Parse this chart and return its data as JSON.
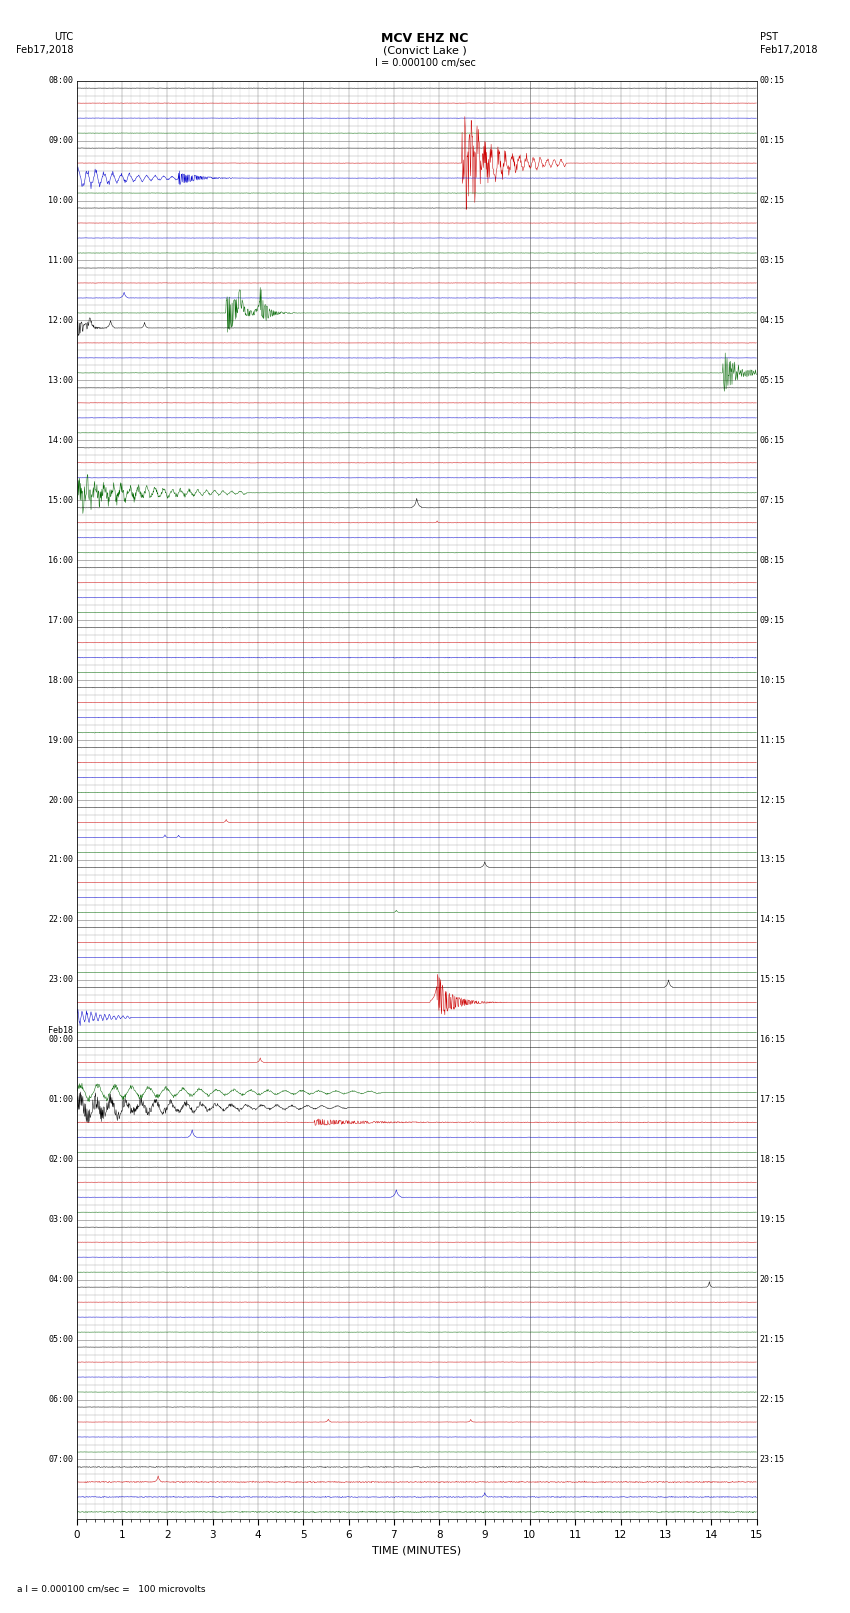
{
  "title_line1": "MCV EHZ NC",
  "title_line2": "(Convict Lake )",
  "title_scale": "I = 0.000100 cm/sec",
  "left_label_line1": "UTC",
  "left_label_line2": "Feb17,2018",
  "right_label_line1": "PST",
  "right_label_line2": "Feb17,2018",
  "xlabel": "TIME (MINUTES)",
  "footer": "a I = 0.000100 cm/sec =   100 microvolts",
  "utc_times": [
    "08:00",
    "09:00",
    "10:00",
    "11:00",
    "12:00",
    "13:00",
    "14:00",
    "15:00",
    "16:00",
    "17:00",
    "18:00",
    "19:00",
    "20:00",
    "21:00",
    "22:00",
    "23:00",
    "Feb18\n00:00",
    "01:00",
    "02:00",
    "03:00",
    "04:00",
    "05:00",
    "06:00",
    "07:00"
  ],
  "pst_times": [
    "00:15",
    "01:15",
    "02:15",
    "03:15",
    "04:15",
    "05:15",
    "06:15",
    "07:15",
    "08:15",
    "09:15",
    "10:15",
    "11:15",
    "12:15",
    "13:15",
    "14:15",
    "15:15",
    "16:15",
    "17:15",
    "18:15",
    "19:15",
    "20:15",
    "21:15",
    "22:15",
    "23:15"
  ],
  "n_rows": 96,
  "minutes": 15,
  "bg_color": "#ffffff",
  "grid_color": "#777777",
  "minor_grid_color": "#bbbbbb",
  "waveform_colors": [
    "#000000",
    "#cc0000",
    "#0000cc",
    "#006600"
  ],
  "amplitude_scale": 0.25,
  "noise_scale": 0.018,
  "seed": 12345
}
